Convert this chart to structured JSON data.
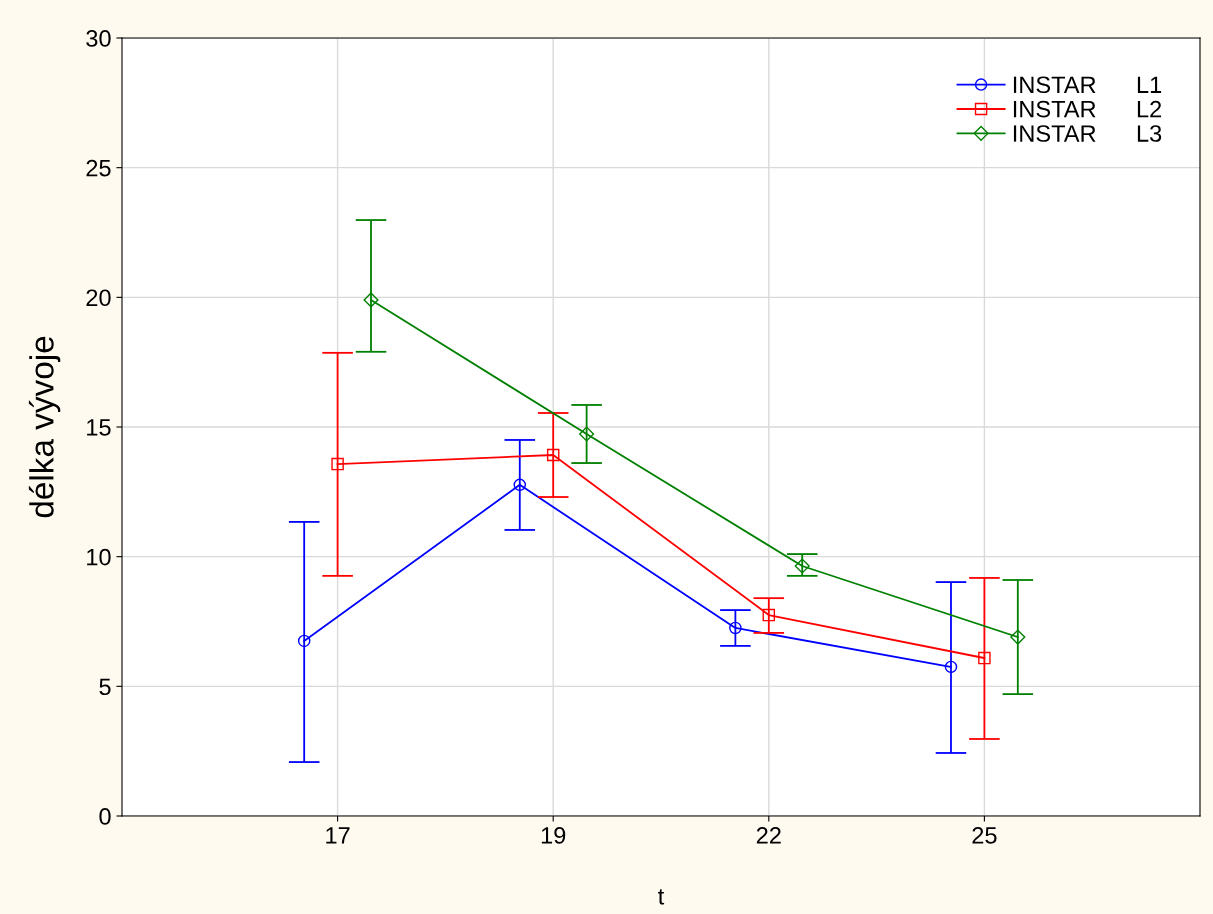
{
  "chart_data": {
    "type": "line",
    "xlabel": "t",
    "ylabel": "délka vývoje",
    "categories": [
      "17",
      "19",
      "22",
      "25"
    ],
    "series": [
      {
        "name": "INSTAR      L1",
        "color": "#0000ff",
        "marker": "circle",
        "values": [
          6.75,
          12.77,
          7.25,
          5.75
        ],
        "errors": [
          [
            2.08,
            11.34
          ],
          [
            11.03,
            14.5
          ],
          [
            6.56,
            7.94
          ],
          [
            2.43,
            9.02
          ]
        ]
      },
      {
        "name": "INSTAR      L2",
        "color": "#ff0000",
        "marker": "square",
        "values": [
          13.57,
          13.92,
          7.75,
          6.09
        ],
        "errors": [
          [
            9.26,
            17.86
          ],
          [
            12.3,
            15.54
          ],
          [
            7.06,
            8.4
          ],
          [
            2.97,
            9.18
          ]
        ]
      },
      {
        "name": "INSTAR      L3",
        "color": "#008000",
        "marker": "diamond",
        "values": [
          19.9,
          14.73,
          9.64,
          6.9
        ],
        "errors": [
          [
            17.9,
            22.98
          ],
          [
            13.61,
            15.85
          ],
          [
            9.26,
            10.1
          ],
          [
            4.7,
            9.1
          ]
        ]
      }
    ],
    "ylim": [
      0,
      30
    ],
    "yticks": [
      0,
      5,
      10,
      15,
      20,
      25,
      30
    ],
    "grid": true,
    "legend": "top right"
  }
}
